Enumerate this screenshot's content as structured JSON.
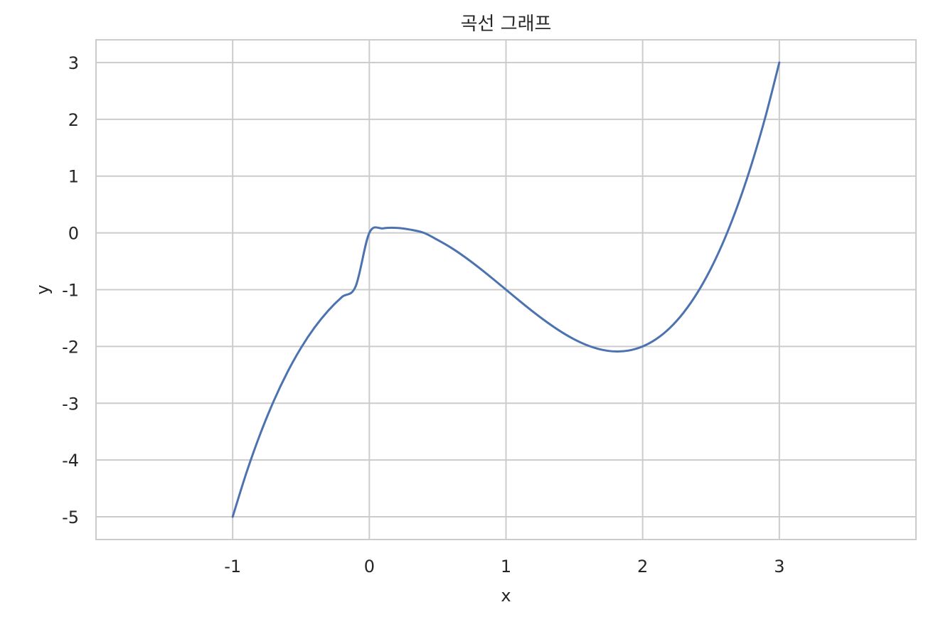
{
  "chart_data": {
    "type": "line",
    "title": "곡선 그래프",
    "xlabel": "x",
    "ylabel": "y",
    "xlim": [
      -2,
      4
    ],
    "ylim": [
      -5.4,
      3.4
    ],
    "xticks": [
      -1,
      0,
      1,
      2,
      3
    ],
    "yticks": [
      -5,
      -4,
      -3,
      -2,
      -1,
      0,
      1,
      2,
      3
    ],
    "xtick_labels": [
      "-1",
      "0",
      "1",
      "2",
      "3"
    ],
    "ytick_labels": [
      "-5",
      "-4",
      "-3",
      "-2",
      "-1",
      "0",
      "1",
      "2",
      "3"
    ],
    "grid": true,
    "series": [
      {
        "color": "#4c72b0",
        "x": [
          -1.0,
          -0.9,
          -0.8,
          -0.7,
          -0.6,
          -0.5,
          -0.4,
          -0.3,
          -0.2,
          -0.1,
          0.0,
          0.1,
          0.2,
          0.3,
          0.4,
          0.5,
          0.6,
          0.7,
          0.8,
          0.9,
          1.0,
          1.1,
          1.2,
          1.3,
          1.4,
          1.5,
          1.6,
          1.7,
          1.8,
          1.9,
          2.0,
          2.1,
          2.2,
          2.3,
          2.4,
          2.5,
          2.6,
          2.7,
          2.8,
          2.9,
          3.0
        ],
        "y": [
          -5.0,
          -4.229,
          -3.552,
          -2.963,
          -2.456,
          -2.025,
          -1.664,
          -1.367,
          -1.128,
          -0.941,
          0.0,
          0.079,
          0.088,
          0.057,
          0.0,
          -0.125,
          -0.264,
          -0.427,
          -0.608,
          -0.801,
          -1.0,
          -1.199,
          -1.392,
          -1.573,
          -1.736,
          -1.875,
          -1.984,
          -2.057,
          -2.088,
          -2.071,
          -2.0,
          -1.869,
          -1.672,
          -1.403,
          -1.056,
          -0.625,
          -0.104,
          0.513,
          1.232,
          2.059,
          3.0
        ]
      }
    ]
  }
}
